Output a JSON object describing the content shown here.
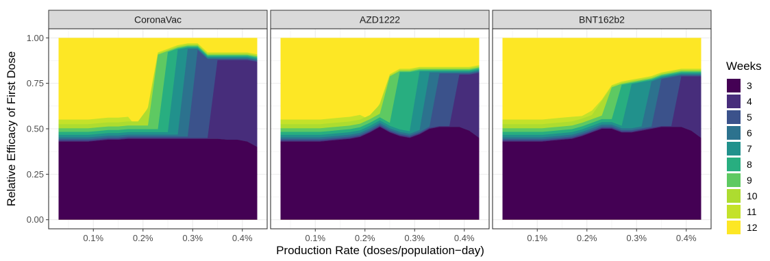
{
  "chart_data": {
    "type": "heatmap",
    "xlabel": "Production Rate (doses/population−day)",
    "ylabel": "Relative Efficacy of First Dose",
    "x_ticks": [
      "0.1%",
      "0.2%",
      "0.3%",
      "0.4%"
    ],
    "x_tick_values": [
      0.1,
      0.2,
      0.3,
      0.4
    ],
    "xlim": [
      0.03,
      0.43
    ],
    "y_ticks": [
      "0.00",
      "0.25",
      "0.50",
      "0.75",
      "1.00"
    ],
    "y_tick_values": [
      0,
      0.25,
      0.5,
      0.75,
      1.0
    ],
    "ylim": [
      0,
      1
    ],
    "grid": true,
    "legend": {
      "title": "Weeks",
      "position": "right",
      "levels": [
        "3",
        "4",
        "5",
        "6",
        "7",
        "8",
        "9",
        "10",
        "11",
        "12"
      ],
      "colors": [
        "#440154",
        "#472d7b",
        "#3b528b",
        "#2c728e",
        "#21918c",
        "#28ae80",
        "#5ec962",
        "#addc30",
        "#c4e22a",
        "#fde725"
      ]
    },
    "panels": [
      {
        "title": "CoronaVac",
        "switch": [
          0.43,
          0.43,
          0.43,
          0.43,
          0.435,
          0.44,
          0.44,
          0.445,
          0.445,
          0.445,
          0.445,
          0.445,
          0.445,
          0.445,
          0.445,
          0.445,
          0.445,
          0.44,
          0.44,
          0.43,
          0.4
        ],
        "top": [
          0.56,
          0.56,
          0.56,
          0.56,
          0.55,
          0.54,
          0.53,
          0.52,
          0.5,
          0.62,
          0.92,
          0.94,
          0.96,
          0.97,
          0.97,
          0.92,
          0.92,
          0.92,
          0.92,
          0.92,
          0.91
        ],
        "steps": [
          0.19,
          0.215,
          0.235,
          0.255,
          0.275,
          0.295,
          0.325,
          0.355,
          0.385,
          0.43
        ]
      },
      {
        "title": "AZD1222",
        "switch": [
          0.43,
          0.43,
          0.43,
          0.43,
          0.43,
          0.435,
          0.44,
          0.445,
          0.455,
          0.48,
          0.51,
          0.48,
          0.46,
          0.45,
          0.47,
          0.5,
          0.51,
          0.51,
          0.51,
          0.49,
          0.45
        ],
        "top": [
          0.55,
          0.55,
          0.55,
          0.55,
          0.54,
          0.53,
          0.53,
          0.53,
          0.54,
          0.55,
          0.64,
          0.8,
          0.83,
          0.83,
          0.84,
          0.84,
          0.84,
          0.84,
          0.84,
          0.84,
          0.85
        ],
        "steps": [
          0.21,
          0.235,
          0.26,
          0.285,
          0.31,
          0.335,
          0.365,
          0.395,
          0.42,
          0.43
        ]
      },
      {
        "title": "BNT162b2",
        "switch": [
          0.43,
          0.43,
          0.43,
          0.43,
          0.43,
          0.435,
          0.44,
          0.445,
          0.46,
          0.48,
          0.5,
          0.5,
          0.48,
          0.48,
          0.49,
          0.5,
          0.51,
          0.51,
          0.51,
          0.49,
          0.45
        ],
        "top": [
          0.56,
          0.56,
          0.56,
          0.56,
          0.55,
          0.55,
          0.55,
          0.56,
          0.57,
          0.6,
          0.66,
          0.74,
          0.76,
          0.77,
          0.78,
          0.79,
          0.81,
          0.82,
          0.83,
          0.83,
          0.83
        ],
        "steps": [
          0.2,
          0.225,
          0.25,
          0.275,
          0.3,
          0.33,
          0.36,
          0.39,
          0.42,
          0.43
        ]
      }
    ]
  }
}
